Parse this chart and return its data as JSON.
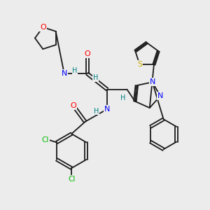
{
  "bg_color": "#ececec",
  "bond_color": "#1a1a1a",
  "N_color": "#0000ff",
  "O_color": "#ff0000",
  "S_color": "#ccaa00",
  "Cl_color": "#00bb00",
  "H_color": "#008080",
  "lw": 1.3,
  "fs": 8.0,
  "fs_small": 7.0,
  "xlim": [
    0,
    10
  ],
  "ylim": [
    0,
    10
  ]
}
